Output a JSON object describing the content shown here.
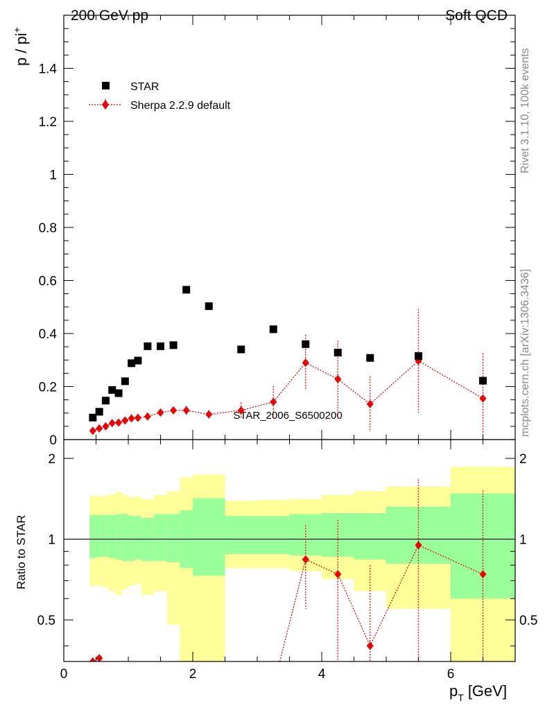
{
  "header": {
    "left_label": "200 GeV pp",
    "right_label": "Soft QCD"
  },
  "side_labels": {
    "rivet": "Rivet 3.1.10,  100k events",
    "mcplots": "mcplots.cern.ch [arXiv:1306.3436]"
  },
  "watermark": "STAR_2006_S6500200",
  "legend": {
    "star": "STAR",
    "sherpa": "Sherpa 2.2.9 default"
  },
  "colors": {
    "data": "#000000",
    "mc": "#ee0000",
    "band_inner": "#99ff99",
    "band_outer": "#ffff99"
  },
  "chart_data": [
    {
      "type": "scatter",
      "ylabel": "p / pi",
      "ylabel_sup": "+",
      "xlim": [
        0,
        7
      ],
      "ylim": [
        0,
        1.6
      ],
      "yticks": [
        0,
        0.2,
        0.4,
        0.6,
        0.8,
        1,
        1.2,
        1.4
      ],
      "ytick_labels": [
        "0",
        "0.2",
        "0.4",
        "0.6",
        "0.8",
        "1",
        "1.2",
        "1.4"
      ],
      "series": [
        {
          "name": "STAR",
          "x": [
            0.45,
            0.55,
            0.65,
            0.75,
            0.85,
            0.95,
            1.05,
            1.15,
            1.3,
            1.5,
            1.7,
            1.9,
            2.25,
            2.75,
            3.25,
            3.75,
            4.25,
            4.75,
            5.5,
            6.5
          ],
          "y": [
            0.083,
            0.105,
            0.147,
            0.187,
            0.175,
            0.22,
            0.288,
            0.298,
            0.352,
            0.352,
            0.356,
            0.565,
            0.503,
            0.34,
            0.416,
            0.36,
            0.328,
            0.308,
            0.315,
            0.222
          ]
        },
        {
          "name": "Sherpa 2.2.9 default",
          "x": [
            0.45,
            0.55,
            0.65,
            0.75,
            0.85,
            0.95,
            1.05,
            1.15,
            1.3,
            1.5,
            1.7,
            1.9,
            2.25,
            2.75,
            3.25,
            3.75,
            4.25,
            4.75,
            5.5,
            6.5
          ],
          "y": [
            0.033,
            0.042,
            0.05,
            0.062,
            0.064,
            0.072,
            0.08,
            0.082,
            0.087,
            0.102,
            0.11,
            0.11,
            0.095,
            0.11,
            0.142,
            0.29,
            0.228,
            0.134,
            0.297,
            0.155
          ],
          "yerr": [
            0.004,
            0.004,
            0.005,
            0.006,
            0.006,
            0.007,
            0.008,
            0.008,
            0.009,
            0.012,
            0.015,
            0.017,
            0.016,
            0.03,
            0.06,
            0.105,
            0.145,
            0.105,
            0.195,
            0.17
          ]
        }
      ]
    },
    {
      "type": "area",
      "xlabel": "p",
      "xlabel_sub": "T",
      "xlabel_unit": "[GeV]",
      "ylabel": "Ratio to STAR",
      "xlim": [
        0,
        7
      ],
      "ylim": [
        0.35,
        2.35
      ],
      "log_y": true,
      "xticks": [
        0,
        2,
        4,
        6
      ],
      "xtick_labels": [
        "0",
        "2",
        "4",
        "6"
      ],
      "yticks": [
        0.5,
        1,
        2
      ],
      "ytick_labels": [
        "0.5",
        "1",
        "2"
      ],
      "bin_edges": [
        0.4,
        0.5,
        0.6,
        0.7,
        0.8,
        0.9,
        1.0,
        1.1,
        1.2,
        1.4,
        1.6,
        1.8,
        2.0,
        2.5,
        3.0,
        3.5,
        4.0,
        4.5,
        5.0,
        6.0,
        7.0
      ],
      "band_inner_low": [
        0.85,
        0.86,
        0.86,
        0.85,
        0.84,
        0.83,
        0.83,
        0.84,
        0.83,
        0.83,
        0.82,
        0.78,
        0.73,
        0.88,
        0.88,
        0.87,
        0.86,
        0.84,
        0.81,
        0.6
      ],
      "band_inner_high": [
        1.23,
        1.23,
        1.23,
        1.23,
        1.24,
        1.24,
        1.22,
        1.22,
        1.2,
        1.24,
        1.24,
        1.28,
        1.42,
        1.22,
        1.22,
        1.24,
        1.25,
        1.25,
        1.32,
        1.48
      ],
      "band_outer_low": [
        0.67,
        0.67,
        0.66,
        0.64,
        0.62,
        0.65,
        0.67,
        0.68,
        0.62,
        0.64,
        0.48,
        0.35,
        0.35,
        0.78,
        0.78,
        0.76,
        0.71,
        0.64,
        0.55,
        0.35
      ],
      "band_outer_high": [
        1.45,
        1.45,
        1.45,
        1.47,
        1.5,
        1.46,
        1.43,
        1.44,
        1.41,
        1.46,
        1.51,
        1.7,
        1.74,
        1.39,
        1.4,
        1.41,
        1.46,
        1.51,
        1.57,
        1.86
      ],
      "ratio_x": [
        0.45,
        0.55,
        3.75,
        4.25,
        4.75,
        5.5,
        6.5
      ],
      "ratio_y": [
        0.35,
        0.36,
        0.84,
        0.74,
        0.4,
        0.95,
        0.74
      ],
      "ratio_err": [
        0.015,
        0.015,
        0.29,
        0.44,
        0.4,
        0.72,
        0.78
      ],
      "ratio_line_from": [
        3.35,
        0.35
      ]
    }
  ]
}
